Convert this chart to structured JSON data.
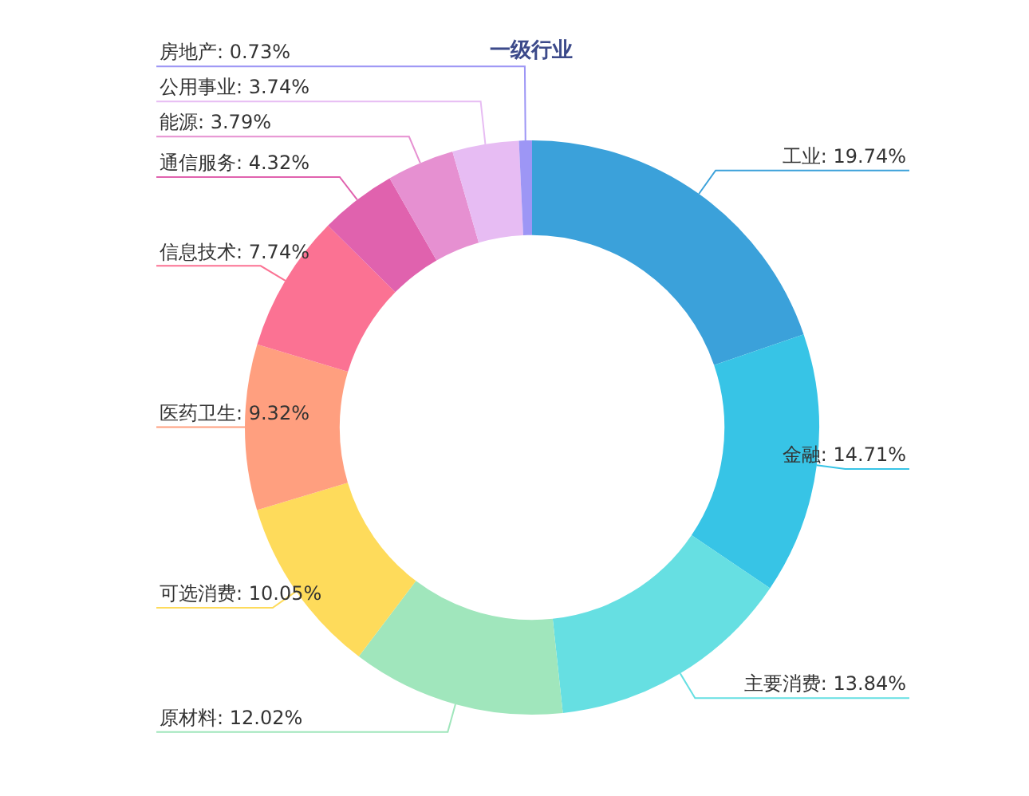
{
  "chart_data": {
    "type": "donut",
    "title": "一级行业",
    "categories": [
      "工业",
      "金融",
      "主要消费",
      "原材料",
      "可选消费",
      "医药卫生",
      "信息技术",
      "通信服务",
      "能源",
      "公用事业",
      "房地产"
    ],
    "values": [
      19.74,
      14.71,
      13.84,
      12.02,
      10.05,
      9.32,
      7.74,
      4.32,
      3.79,
      3.74,
      0.73
    ],
    "value_labels": [
      "19.74%",
      "14.71%",
      "13.84%",
      "12.02%",
      "10.05%",
      "9.32%",
      "7.74%",
      "4.32%",
      "3.79%",
      "3.74%",
      "0.73%"
    ],
    "colors": [
      "#3ba1da",
      "#37c4e6",
      "#66dfe2",
      "#a0e6bc",
      "#fedb5b",
      "#ff9f7f",
      "#fb7293",
      "#e062ae",
      "#e690d1",
      "#e7bcf3",
      "#9d96f5"
    ],
    "legend": false
  }
}
